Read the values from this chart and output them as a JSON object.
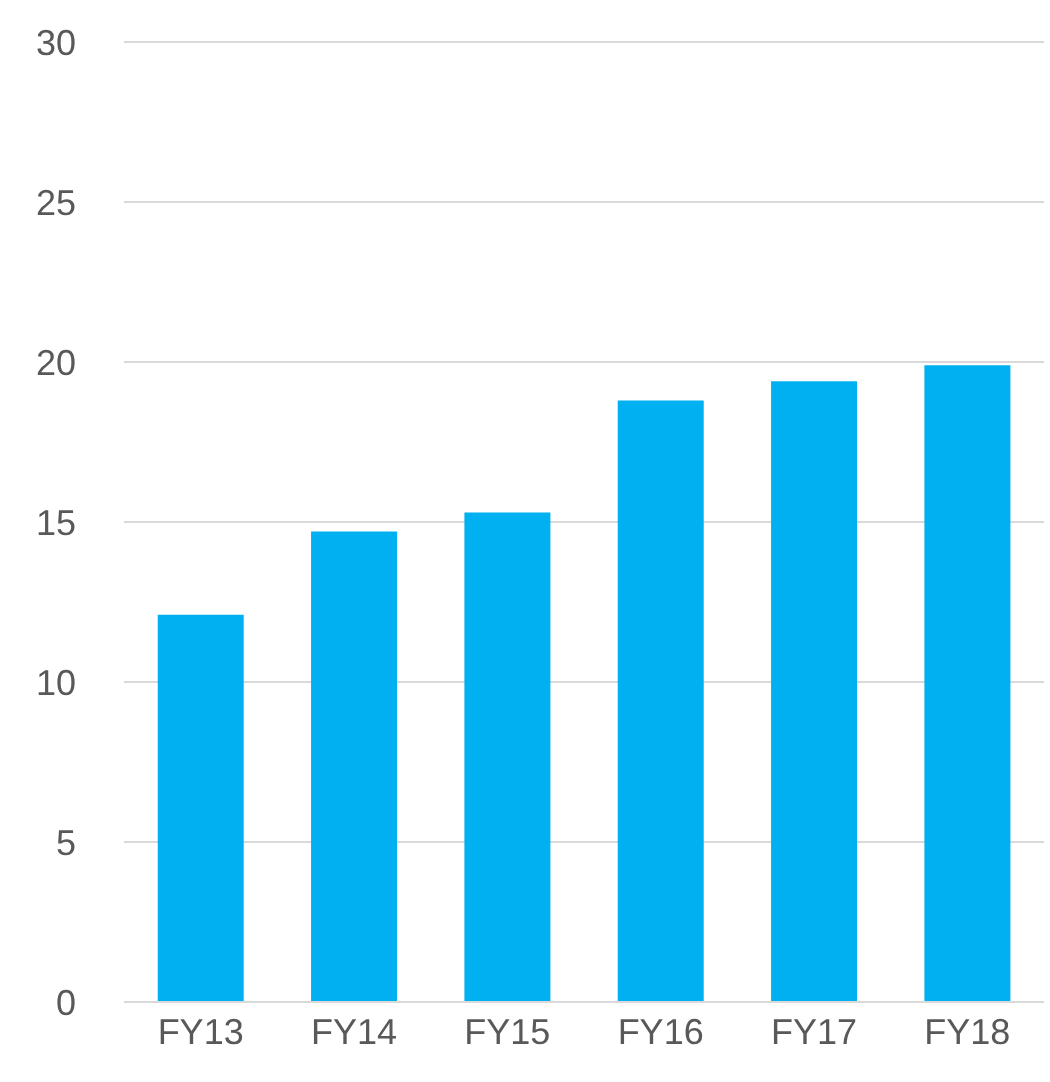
{
  "chart_data": {
    "type": "bar",
    "categories": [
      "FY13",
      "FY14",
      "FY15",
      "FY16",
      "FY17",
      "FY18"
    ],
    "values": [
      12.1,
      14.7,
      15.3,
      18.8,
      19.4,
      19.9
    ],
    "color": "#00b0f0",
    "ylim": [
      0,
      30
    ],
    "yticks": [
      0,
      5,
      10,
      15,
      20,
      25,
      30
    ],
    "grid": "y"
  }
}
